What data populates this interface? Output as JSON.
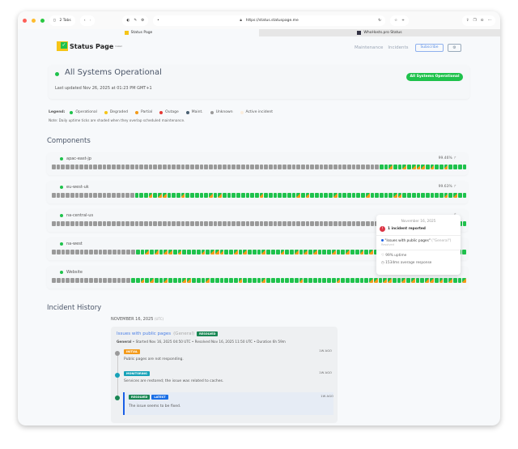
{
  "browser": {
    "tabs_count": "2 Tabs",
    "url": "https://status.statuspage.me",
    "tabs": [
      {
        "label": "Status Page"
      },
      {
        "label": "WhoHosts.pro Status"
      }
    ]
  },
  "header": {
    "logo_text": "Status Page",
    "logo_sup": "hosted",
    "nav": [
      "Maintenance",
      "Incidents"
    ],
    "subscribe": "Subscribe",
    "settings_icon": "gear-icon"
  },
  "status": {
    "title": "All Systems Operational",
    "updated": "Last updated Nov 26, 2025 at 01:23 PM GMT+1",
    "badge": "All Systems Operational",
    "color": "#1fc24c"
  },
  "legend": {
    "label": "Legend:",
    "items": [
      {
        "label": "Operational",
        "color": "#1fc24c"
      },
      {
        "label": "Degraded",
        "color": "#f5c518"
      },
      {
        "label": "Partial",
        "color": "#f39a1a"
      },
      {
        "label": "Outage",
        "color": "#e53935"
      },
      {
        "label": "Maint.",
        "color": "#4a6072"
      },
      {
        "label": "Unknown",
        "color": "#9a9a9a"
      },
      {
        "label": "Active incident",
        "color": "#fbeedd"
      }
    ],
    "note": "Note: Daily uptime ticks are shaded when they overlap scheduled maintenance."
  },
  "components": {
    "title": "Components",
    "items": [
      {
        "name": "apac-east-jp",
        "uptime": "99.46%",
        "ticks": "gggggggggggggggggggggggggggggggggggggggggggggggggggggggggggggggggggggggoopoopopppopoopoooo"
      },
      {
        "name": "eu-west-uk",
        "uptime": "99.63%",
        "ticks": "ggggggggggggggggggooopoppooopooooopopoooooooopooooooopopooooopoooooopoooooppooooooooopopoo"
      },
      {
        "name": "na-central-us",
        "uptime": "",
        "ticks": "ggggggggggggggggggggggggggggggggggggggggggggggggggggggggggggggggggggggggggggggggggggggggoo"
      },
      {
        "name": "na-west",
        "uptime": "",
        "ticks": "ggggggggggggggggggoopopoppopoooopopppoopopooopooopoopopopooopoopoopopooppoopoooooopooopoo"
      },
      {
        "name": "Website",
        "uptime": "",
        "ticks": "gggggggggggggggggoopopoopoooppooopoooooopoooopooooooopooooooopooooooppoppoopopooppopopoop"
      }
    ]
  },
  "tooltip": {
    "date": "November 16, 2025",
    "count": "1 incident reported",
    "incident": "\"Issues with public pages\"",
    "scope": "(\"General\")",
    "state": "Resolved",
    "uptime": "99% uptime",
    "response": "1534ms average response"
  },
  "history": {
    "title": "Incident History",
    "date": "NOVEMBER 16, 2025",
    "tz": "(UTC)",
    "incident": {
      "title": "Issues with public pages",
      "scope": "(General)",
      "badge": "RESOLVED",
      "meta_bold": "General",
      "meta": " • Started Nov 16, 2025 04:50 UTC • Resolved Nov 16, 2025 11:50 UTC • Duration 6h 59m",
      "updates": [
        {
          "badge": "INITIAL",
          "badge_color": "#f39a1a",
          "dot": "#9a9a9a",
          "text": "Public pages are not responding.",
          "ago": "1W AGO"
        },
        {
          "badge": "MONITORING",
          "badge_color": "#17a2b8",
          "dot": "#17a2b8",
          "text": "Services are restored; the issue was related to caches.",
          "ago": "1W AGO"
        },
        {
          "badge": "RESOLVED",
          "badge2": "LATEST",
          "badge_color": "#198754",
          "dot": "#198754",
          "text": "The issue seems to be fixed.",
          "ago": "1W AGO"
        }
      ]
    }
  }
}
